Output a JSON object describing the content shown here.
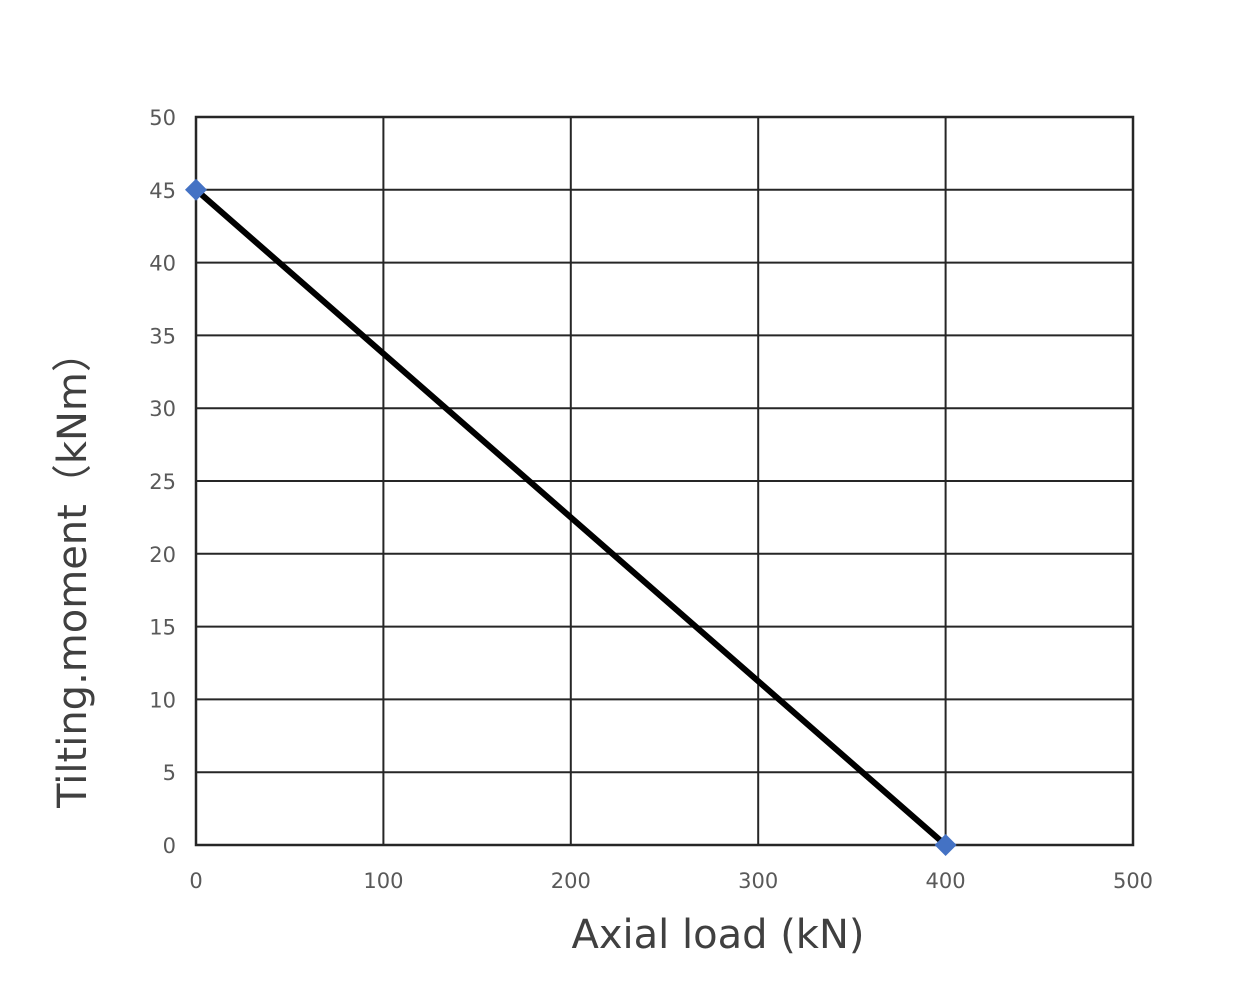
{
  "chart_data": {
    "type": "line",
    "title": "",
    "xlabel": "Axial load (kN)",
    "ylabel": "Tilting.moment（kNm）",
    "xlim": [
      0,
      500
    ],
    "ylim": [
      0,
      50
    ],
    "x_ticks": [
      0,
      100,
      200,
      300,
      400,
      500
    ],
    "y_ticks": [
      0,
      5,
      10,
      15,
      20,
      25,
      30,
      35,
      40,
      45,
      50
    ],
    "grid": true,
    "legend": "none",
    "series": [
      {
        "x": [
          0,
          400
        ],
        "values": [
          45,
          0
        ],
        "line_color": "#000000",
        "marker": "diamond",
        "marker_color": "#4472C4"
      }
    ]
  }
}
